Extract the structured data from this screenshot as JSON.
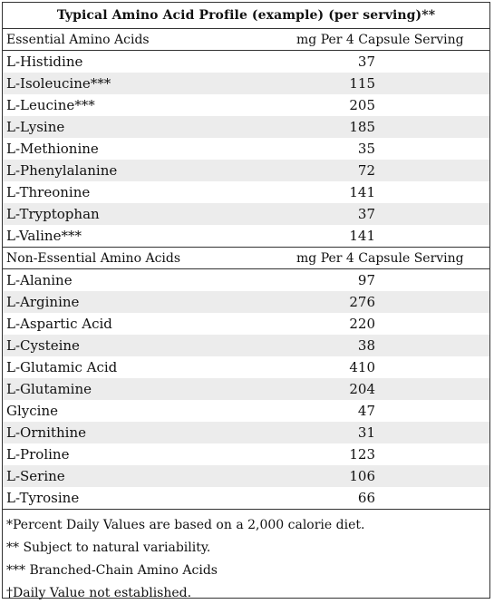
{
  "title": "Typical Amino Acid Profile (example) (per serving)**",
  "essential": {
    "header_left": "Essential Amino Acids",
    "header_right": "mg Per 4 Capsule Serving",
    "rows": [
      {
        "name": "L-Histidine",
        "value": "37"
      },
      {
        "name": "L-Isoleucine***",
        "value": "115"
      },
      {
        "name": "L-Leucine***",
        "value": "205"
      },
      {
        "name": "L-Lysine",
        "value": "185"
      },
      {
        "name": "L-Methionine",
        "value": "35"
      },
      {
        "name": "L-Phenylalanine",
        "value": "72"
      },
      {
        "name": "L-Threonine",
        "value": "141"
      },
      {
        "name": "L-Tryptophan",
        "value": "37"
      },
      {
        "name": "L-Valine***",
        "value": "141"
      }
    ]
  },
  "nonessential": {
    "header_left": "Non-Essential Amino Acids",
    "header_right": "mg Per 4 Capsule Serving",
    "rows": [
      {
        "name": "L-Alanine",
        "value": "97"
      },
      {
        "name": "L-Arginine",
        "value": "276"
      },
      {
        "name": "L-Aspartic Acid",
        "value": "220"
      },
      {
        "name": "L-Cysteine",
        "value": "38"
      },
      {
        "name": "L-Glutamic Acid",
        "value": "410"
      },
      {
        "name": "L-Glutamine",
        "value": "204"
      },
      {
        "name": "Glycine",
        "value": "47"
      },
      {
        "name": "L-Ornithine",
        "value": "31"
      },
      {
        "name": "L-Proline",
        "value": "123"
      },
      {
        "name": "L-Serine",
        "value": "106"
      },
      {
        "name": "L-Tyrosine",
        "value": "66"
      }
    ]
  },
  "footnotes": [
    "*Percent Daily Values are based on a 2,000 calorie diet.",
    "** Subject to natural variability.",
    "*** Branched-Chain Amino Acids",
    "†Daily Value not established."
  ]
}
